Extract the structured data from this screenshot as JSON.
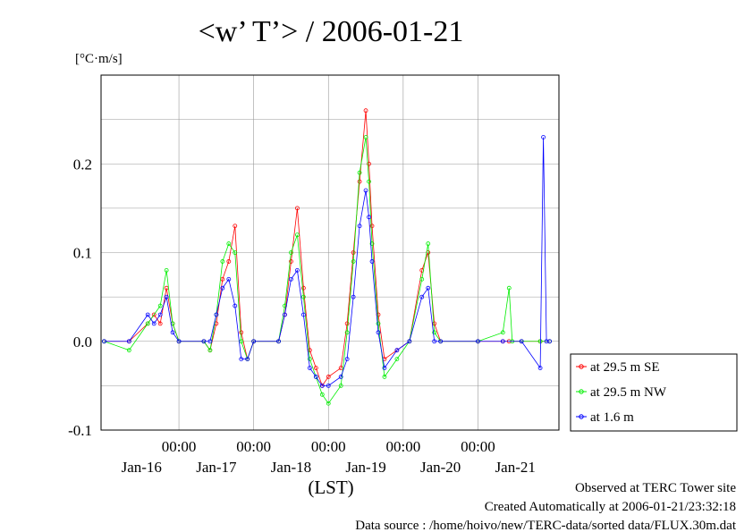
{
  "chart_data": {
    "type": "line",
    "title": "<w’ T’> / 2006-01-21",
    "unit_label": "[°C·m/s]",
    "xlabel": "(LST)",
    "x_tick_time_labels": [
      "00:00",
      "00:00",
      "00:00",
      "00:00",
      "00:00"
    ],
    "x_tick_date_labels": [
      "Jan-16",
      "Jan-17",
      "Jan-18",
      "Jan-19",
      "Jan-20",
      "Jan-21"
    ],
    "y_ticks": [
      -0.1,
      0.0,
      0.1,
      0.2
    ],
    "y_tick_labels": [
      "-0.1",
      "0.0",
      "0.1",
      "0.2"
    ],
    "ylim": [
      -0.1,
      0.3
    ],
    "xlim_hours": [
      -1,
      146
    ],
    "grid": true,
    "legend_position": "right",
    "series": [
      {
        "name": "at 29.5 m SE",
        "color": "#ff0000",
        "points": [
          [
            0,
            0.0
          ],
          [
            8,
            0.0
          ],
          [
            14,
            0.02
          ],
          [
            16,
            0.03
          ],
          [
            18,
            0.02
          ],
          [
            20,
            0.06
          ],
          [
            22,
            0.02
          ],
          [
            24,
            0.0
          ],
          [
            32,
            0.0
          ],
          [
            34,
            -0.01
          ],
          [
            36,
            0.02
          ],
          [
            38,
            0.07
          ],
          [
            40,
            0.09
          ],
          [
            42,
            0.13
          ],
          [
            44,
            0.01
          ],
          [
            46,
            -0.02
          ],
          [
            48,
            0.0
          ],
          [
            56,
            0.0
          ],
          [
            58,
            0.03
          ],
          [
            60,
            0.09
          ],
          [
            62,
            0.15
          ],
          [
            64,
            0.06
          ],
          [
            66,
            -0.01
          ],
          [
            68,
            -0.03
          ],
          [
            70,
            -0.05
          ],
          [
            72,
            -0.04
          ],
          [
            76,
            -0.03
          ],
          [
            78,
            0.02
          ],
          [
            80,
            0.1
          ],
          [
            82,
            0.18
          ],
          [
            84,
            0.26
          ],
          [
            85,
            0.2
          ],
          [
            86,
            0.13
          ],
          [
            88,
            0.03
          ],
          [
            90,
            -0.02
          ],
          [
            94,
            -0.01
          ],
          [
            98,
            0.0
          ],
          [
            102,
            0.08
          ],
          [
            104,
            0.1
          ],
          [
            106,
            0.02
          ],
          [
            108,
            0.0
          ],
          [
            120,
            0.0
          ],
          [
            128,
            0.0
          ],
          [
            130,
            0.0
          ],
          [
            134,
            0.0
          ],
          [
            140,
            0.0
          ],
          [
            143,
            0.0
          ]
        ]
      },
      {
        "name": "at 29.5 m NW",
        "color": "#00ee00",
        "points": [
          [
            0,
            0.0
          ],
          [
            8,
            -0.01
          ],
          [
            14,
            0.02
          ],
          [
            18,
            0.04
          ],
          [
            20,
            0.08
          ],
          [
            22,
            0.02
          ],
          [
            24,
            0.0
          ],
          [
            32,
            0.0
          ],
          [
            34,
            -0.01
          ],
          [
            36,
            0.03
          ],
          [
            38,
            0.09
          ],
          [
            40,
            0.11
          ],
          [
            42,
            0.1
          ],
          [
            44,
            0.0
          ],
          [
            46,
            -0.02
          ],
          [
            48,
            0.0
          ],
          [
            56,
            0.0
          ],
          [
            58,
            0.04
          ],
          [
            60,
            0.1
          ],
          [
            62,
            0.12
          ],
          [
            64,
            0.05
          ],
          [
            66,
            -0.02
          ],
          [
            68,
            -0.04
          ],
          [
            70,
            -0.06
          ],
          [
            72,
            -0.07
          ],
          [
            76,
            -0.05
          ],
          [
            78,
            0.01
          ],
          [
            80,
            0.09
          ],
          [
            82,
            0.19
          ],
          [
            84,
            0.23
          ],
          [
            85,
            0.18
          ],
          [
            86,
            0.11
          ],
          [
            88,
            0.02
          ],
          [
            90,
            -0.04
          ],
          [
            94,
            -0.02
          ],
          [
            98,
            0.0
          ],
          [
            102,
            0.07
          ],
          [
            104,
            0.11
          ],
          [
            106,
            0.01
          ],
          [
            108,
            0.0
          ],
          [
            120,
            0.0
          ],
          [
            128,
            0.01
          ],
          [
            130,
            0.06
          ],
          [
            131,
            0.0
          ],
          [
            134,
            0.0
          ],
          [
            140,
            0.0
          ],
          [
            143,
            0.0
          ]
        ]
      },
      {
        "name": "at 1.6 m",
        "color": "#0000ff",
        "points": [
          [
            0,
            0.0
          ],
          [
            8,
            0.0
          ],
          [
            14,
            0.03
          ],
          [
            16,
            0.02
          ],
          [
            18,
            0.03
          ],
          [
            20,
            0.05
          ],
          [
            22,
            0.01
          ],
          [
            24,
            0.0
          ],
          [
            32,
            0.0
          ],
          [
            34,
            0.0
          ],
          [
            36,
            0.03
          ],
          [
            38,
            0.06
          ],
          [
            40,
            0.07
          ],
          [
            42,
            0.04
          ],
          [
            44,
            -0.02
          ],
          [
            46,
            -0.02
          ],
          [
            48,
            0.0
          ],
          [
            56,
            0.0
          ],
          [
            58,
            0.03
          ],
          [
            60,
            0.07
          ],
          [
            62,
            0.08
          ],
          [
            64,
            0.03
          ],
          [
            66,
            -0.03
          ],
          [
            68,
            -0.04
          ],
          [
            70,
            -0.05
          ],
          [
            72,
            -0.05
          ],
          [
            76,
            -0.04
          ],
          [
            78,
            -0.02
          ],
          [
            80,
            0.05
          ],
          [
            82,
            0.13
          ],
          [
            84,
            0.17
          ],
          [
            85,
            0.14
          ],
          [
            86,
            0.09
          ],
          [
            88,
            0.01
          ],
          [
            90,
            -0.03
          ],
          [
            94,
            -0.01
          ],
          [
            98,
            0.0
          ],
          [
            102,
            0.05
          ],
          [
            104,
            0.06
          ],
          [
            106,
            0.0
          ],
          [
            108,
            0.0
          ],
          [
            120,
            0.0
          ],
          [
            128,
            0.0
          ],
          [
            134,
            0.0
          ],
          [
            140,
            -0.03
          ],
          [
            141,
            0.23
          ],
          [
            142,
            0.0
          ],
          [
            143,
            0.0
          ]
        ]
      }
    ]
  },
  "footer": {
    "line1": "Observed at TERC Tower site",
    "line2": "Created Automatically at 2006-01-21/23:32:18",
    "line3": "Data source : /home/hoivo/new/TERC-data/sorted  data/FLUX.30m.dat"
  }
}
